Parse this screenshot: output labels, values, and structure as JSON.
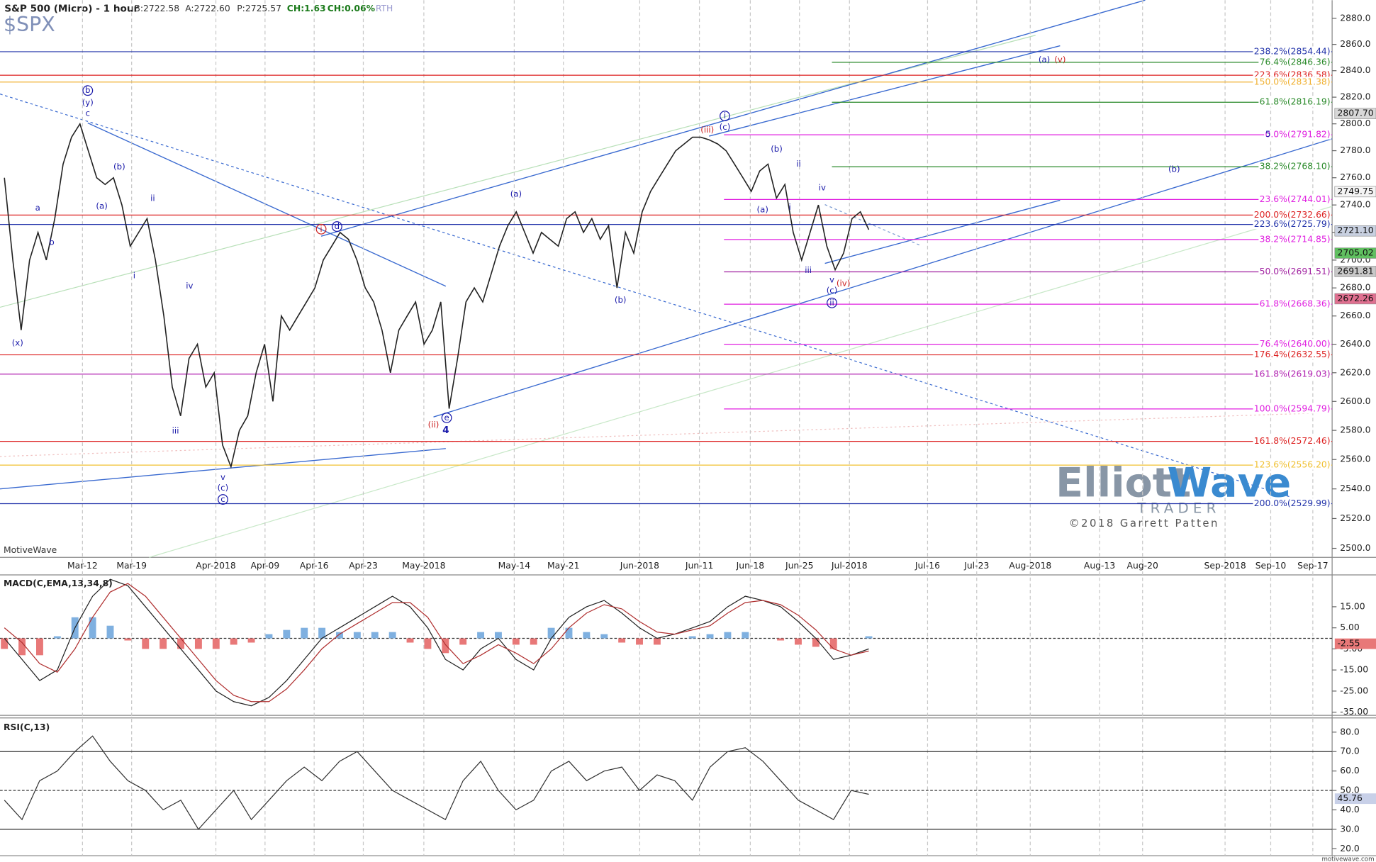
{
  "header": {
    "title": "S&P 500 (Micro) - 1 hour",
    "quote": [
      "B:2722.58",
      "A:2722.60",
      "P:2725.57",
      "CH:1.63",
      "CH:0.06%"
    ],
    "session": "RTH",
    "symbol": "$SPX"
  },
  "chart_data": [
    {
      "type": "line",
      "color": "#222222",
      "log_scale": true,
      "ylim": [
        2494,
        2894
      ],
      "yticks": [
        {
          "value": 2500,
          "label": "2500.0"
        },
        {
          "value": 2520,
          "label": "2520.0"
        },
        {
          "value": 2540,
          "label": "2540.0"
        },
        {
          "value": 2560,
          "label": "2560.0"
        },
        {
          "value": 2580,
          "label": "2580.0"
        },
        {
          "value": 2600,
          "label": "2600.0"
        },
        {
          "value": 2620,
          "label": "2620.0"
        },
        {
          "value": 2640,
          "label": "2640.0"
        },
        {
          "value": 2660,
          "label": "2660.0"
        },
        {
          "value": 2680,
          "label": "2680.0"
        },
        {
          "value": 2700,
          "label": "2700.0"
        },
        {
          "value": 2720,
          "label": "2720.0"
        },
        {
          "value": 2740,
          "label": "2740.0"
        },
        {
          "value": 2760,
          "label": "2760.0"
        },
        {
          "value": 2780,
          "label": "2780.0"
        },
        {
          "value": 2800,
          "label": "2800.0"
        },
        {
          "value": 2820,
          "label": "2820.0"
        },
        {
          "value": 2840,
          "label": "2840.0"
        },
        {
          "value": 2860,
          "label": "2860.0"
        },
        {
          "value": 2880,
          "label": "2880.0"
        }
      ],
      "x_labels": [
        "Mar-12",
        "Mar-19",
        "Apr-2018",
        "Apr-09",
        "Apr-16",
        "Apr-23",
        "May-2018",
        "May-14",
        "May-21",
        "Jun-2018",
        "Jun-11",
        "Jun-18",
        "Jun-25",
        "Jul-2018",
        "Jul-16",
        "Jul-23",
        "Aug-2018",
        "Aug-13",
        "Aug-20",
        "Sep-2018",
        "Sep-10",
        "Sep-17"
      ],
      "values": [
        2760,
        2700,
        2650,
        2700,
        2720,
        2700,
        2730,
        2770,
        2790,
        2800,
        2780,
        2760,
        2755,
        2760,
        2740,
        2710,
        2720,
        2730,
        2700,
        2660,
        2610,
        2590,
        2630,
        2640,
        2610,
        2620,
        2570,
        2555,
        2580,
        2590,
        2620,
        2640,
        2600,
        2660,
        2650,
        2660,
        2670,
        2680,
        2700,
        2710,
        2720,
        2715,
        2700,
        2680,
        2670,
        2650,
        2620,
        2650,
        2660,
        2670,
        2640,
        2650,
        2670,
        2595,
        2630,
        2670,
        2680,
        2670,
        2690,
        2710,
        2725,
        2735,
        2720,
        2705,
        2720,
        2715,
        2710,
        2730,
        2735,
        2720,
        2730,
        2715,
        2725,
        2680,
        2720,
        2705,
        2735,
        2750,
        2760,
        2770,
        2780,
        2785,
        2790,
        2790,
        2788,
        2785,
        2780,
        2770,
        2760,
        2750,
        2765,
        2770,
        2745,
        2755,
        2720,
        2700,
        2720,
        2740,
        2710,
        2693,
        2705,
        2730,
        2735,
        2722
      ],
      "levels": [
        {
          "label": "238.2%(2854.44)",
          "value": 2854.44,
          "color": "#2233aa"
        },
        {
          "label": "76.4%(2846.36)",
          "value": 2846.36,
          "color": "#2a8a2a"
        },
        {
          "label": "223.6%(2836.58)",
          "value": 2836.58,
          "color": "#dd2222"
        },
        {
          "label": "150.0%(2831.38)",
          "value": 2831.38,
          "color": "#f0b030"
        },
        {
          "label": "61.8%(2816.19)",
          "value": 2816.19,
          "color": "#2a8a2a"
        },
        {
          "label": "0.0%(2791.82)",
          "value": 2791.82,
          "color": "#e020e0"
        },
        {
          "label": "38.2%(2768.10)",
          "value": 2768.1,
          "color": "#2a8a2a"
        },
        {
          "label": "23.6%(2744.01)",
          "value": 2744.01,
          "color": "#e020e0"
        },
        {
          "label": "200.0%(2732.66)",
          "value": 2732.66,
          "color": "#dd2222"
        },
        {
          "label": "223.6%(2725.79)",
          "value": 2725.79,
          "color": "#2233aa"
        },
        {
          "label": "38.2%(2714.85)",
          "value": 2714.85,
          "color": "#e020e0"
        },
        {
          "label": "50.0%(2691.51)",
          "value": 2691.51,
          "color": "#a020a0"
        },
        {
          "label": "61.8%(2668.36)",
          "value": 2668.36,
          "color": "#e020e0"
        },
        {
          "label": "76.4%(2640.00)",
          "value": 2640.0,
          "color": "#e020e0"
        },
        {
          "label": "176.4%(2632.55)",
          "value": 2632.55,
          "color": "#dd2222"
        },
        {
          "label": "161.8%(2619.03)",
          "value": 2619.03,
          "color": "#b020b0"
        },
        {
          "label": "100.0%(2594.79)",
          "value": 2594.79,
          "color": "#e020e0"
        },
        {
          "label": "161.8%(2572.46)",
          "value": 2572.46,
          "color": "#dd2222"
        },
        {
          "label": "123.6%(2556.20)",
          "value": 2556.2,
          "color": "#f0c030"
        },
        {
          "label": "200.0%(2529.99)",
          "value": 2529.99,
          "color": "#2233aa"
        }
      ],
      "price_tags": [
        {
          "value": 2807.7,
          "label": "2807.70",
          "color": "#d8d8d8"
        },
        {
          "value": 2749.75,
          "label": "2749.75",
          "color": "#f4f4f4"
        },
        {
          "value": 2721.1,
          "label": "2721.10",
          "color": "#c8d0e0"
        },
        {
          "value": 2705.02,
          "label": "2705.02",
          "color": "#60c060"
        },
        {
          "value": 2691.81,
          "label": "2691.81",
          "color": "#c8c8c8"
        },
        {
          "value": 2672.26,
          "label": "2672.26",
          "color": "#e07090"
        }
      ],
      "wave_labels": [
        {
          "text": "b",
          "color": "#1a1aaa",
          "circled": true
        },
        {
          "text": "(y)",
          "color": "#1a1aaa"
        },
        {
          "text": "c",
          "color": "#1a1aaa"
        },
        {
          "text": "(b)",
          "color": "#1a1aaa"
        },
        {
          "text": "(a)",
          "color": "#1a1aaa"
        },
        {
          "text": "a",
          "color": "#1a1aaa"
        },
        {
          "text": "b",
          "color": "#1a1aaa"
        },
        {
          "text": "ii",
          "color": "#1a1aaa"
        },
        {
          "text": "i",
          "color": "#1a1aaa"
        },
        {
          "text": "(x)",
          "color": "#1a1aaa"
        },
        {
          "text": "iv",
          "color": "#1a1aaa"
        },
        {
          "text": "iii",
          "color": "#1a1aaa"
        },
        {
          "text": "v",
          "color": "#1a1aaa"
        },
        {
          "text": "(c)",
          "color": "#1a1aaa"
        },
        {
          "text": "c",
          "color": "#1a1aaa",
          "circled": true
        },
        {
          "text": "i",
          "color": "#cc2222",
          "circled": true
        },
        {
          "text": "d",
          "color": "#1a1aaa",
          "circled": true
        },
        {
          "text": "(ii)",
          "color": "#cc2222"
        },
        {
          "text": "e",
          "color": "#1a1aaa",
          "circled": true
        },
        {
          "text": "4",
          "color": "#1a1aaa",
          "bold": true
        },
        {
          "text": "(a)",
          "color": "#1a1aaa"
        },
        {
          "text": "(b)",
          "color": "#1a1aaa"
        },
        {
          "text": "(iii)",
          "color": "#cc2222"
        },
        {
          "text": "i",
          "color": "#1a1aaa",
          "circled": true
        },
        {
          "text": "(c)",
          "color": "#1a1aaa"
        },
        {
          "text": "(b)",
          "color": "#1a1aaa"
        },
        {
          "text": "ii",
          "color": "#1a1aaa"
        },
        {
          "text": "(a)",
          "color": "#1a1aaa"
        },
        {
          "text": "i",
          "color": "#1a1aaa"
        },
        {
          "text": "iv",
          "color": "#1a1aaa"
        },
        {
          "text": "iii",
          "color": "#1a1aaa"
        },
        {
          "text": "v",
          "color": "#1a1aaa"
        },
        {
          "text": "(c)",
          "color": "#1a1aaa"
        },
        {
          "text": "ii",
          "color": "#1a1aaa",
          "circled": true
        },
        {
          "text": "(iv)",
          "color": "#cc2222"
        },
        {
          "text": "(a)",
          "color": "#1a1aaa"
        },
        {
          "text": "(v)",
          "color": "#cc2222"
        },
        {
          "text": "(b)",
          "color": "#1a1aaa"
        },
        {
          "text": "5",
          "color": "#1a1aaa"
        }
      ]
    },
    {
      "type": "macd",
      "title": "MACD(C,EMA,13,34,8)",
      "ylim": [
        -36.5,
        30.1
      ],
      "yticks": [
        {
          "value": 15,
          "label": "15.00"
        },
        {
          "value": 5,
          "label": "5.00"
        },
        {
          "value": -5,
          "label": "-5.00"
        },
        {
          "value": -15,
          "label": "-15.00"
        },
        {
          "value": -25,
          "label": "-25.00"
        },
        {
          "value": -35,
          "label": "-35.00"
        }
      ],
      "reference_lines": [
        0
      ],
      "last_value": -2.55,
      "lines": [
        {
          "color": "#222222",
          "values": [
            0,
            -10,
            -20,
            -15,
            5,
            20,
            28,
            25,
            15,
            5,
            -5,
            -15,
            -25,
            -30,
            -32,
            -28,
            -20,
            -10,
            0,
            5,
            10,
            15,
            20,
            15,
            5,
            -10,
            -15,
            -5,
            0,
            -10,
            -15,
            0,
            10,
            15,
            18,
            12,
            5,
            0,
            2,
            5,
            8,
            15,
            20,
            18,
            15,
            8,
            0,
            -10,
            -8,
            -5
          ]
        },
        {
          "color": "#b03030",
          "values": [
            5,
            -2,
            -12,
            -16,
            -5,
            10,
            22,
            26,
            20,
            10,
            0,
            -10,
            -20,
            -27,
            -30,
            -30,
            -24,
            -15,
            -5,
            2,
            7,
            12,
            17,
            17,
            10,
            -3,
            -12,
            -8,
            -3,
            -7,
            -12,
            -5,
            5,
            12,
            16,
            14,
            8,
            3,
            2,
            4,
            6,
            12,
            17,
            18,
            16,
            11,
            4,
            -5,
            -8,
            -6
          ]
        }
      ],
      "histogram": {
        "up_color": "#7fb0e0",
        "down_color": "#e87878",
        "values": [
          -5,
          -8,
          -8,
          1,
          10,
          10,
          6,
          -1,
          -5,
          -5,
          -5,
          -5,
          -5,
          -3,
          -2,
          2,
          4,
          5,
          5,
          3,
          3,
          3,
          3,
          -2,
          -5,
          -7,
          -3,
          3,
          3,
          -3,
          -3,
          5,
          5,
          3,
          2,
          -2,
          -3,
          -3,
          0,
          1,
          2,
          3,
          3,
          0,
          -1,
          -3,
          -4,
          -5,
          0,
          1
        ]
      }
    },
    {
      "type": "rsi",
      "title": "RSI(C,13)",
      "ylim": [
        16.4,
        87.3
      ],
      "color": "#333333",
      "yticks": [
        {
          "value": 80,
          "label": "80.0"
        },
        {
          "value": 70,
          "label": "70.0"
        },
        {
          "value": 60,
          "label": "60.0"
        },
        {
          "value": 50,
          "label": "50.0"
        },
        {
          "value": 40,
          "label": "40.0"
        },
        {
          "value": 30,
          "label": "30.0"
        },
        {
          "value": 20,
          "label": "20.0"
        }
      ],
      "reference_lines": [
        70,
        50,
        30
      ],
      "last_value": 45.76,
      "values": [
        45,
        35,
        55,
        60,
        70,
        78,
        65,
        55,
        50,
        40,
        45,
        30,
        40,
        50,
        35,
        45,
        55,
        62,
        55,
        65,
        70,
        60,
        50,
        45,
        40,
        35,
        55,
        65,
        50,
        40,
        45,
        60,
        65,
        55,
        60,
        62,
        50,
        58,
        55,
        45,
        62,
        70,
        72,
        65,
        55,
        45,
        40,
        35,
        50,
        48
      ]
    }
  ],
  "branding": {
    "platform": "MotiveWave",
    "watermark": [
      "Elliott",
      "Wave"
    ],
    "watermark_sub": "TRADER",
    "copyright": "©2018 Garrett Patten",
    "footer": "motivewave.com"
  }
}
